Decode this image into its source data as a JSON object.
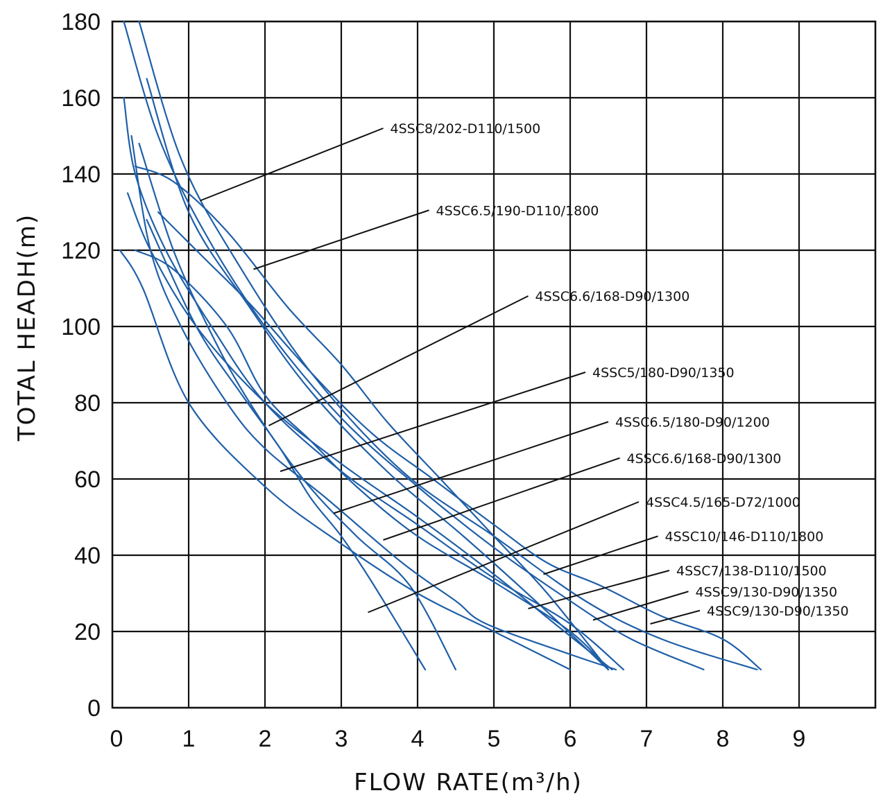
{
  "chart_data": {
    "type": "line",
    "title": "",
    "xlabel": "FLOW RATE(m³/h)",
    "ylabel": "TOTAL HEADH(m)",
    "xlim": [
      0,
      10
    ],
    "ylim": [
      0,
      180
    ],
    "x_ticks": [
      "0",
      "1",
      "2",
      "3",
      "4",
      "5",
      "6",
      "7",
      "8",
      "9"
    ],
    "y_ticks": [
      "0",
      "20",
      "40",
      "60",
      "80",
      "100",
      "120",
      "140",
      "160",
      "180"
    ],
    "grid": true,
    "curve_color": "#1f5fa8",
    "series": [
      {
        "name": "4SSC8/202-D110/1500",
        "points": [
          [
            0.35,
            180
          ],
          [
            0.9,
            144
          ],
          [
            1.6,
            118
          ],
          [
            2.6,
            88
          ],
          [
            3.8,
            62
          ],
          [
            5.0,
            45
          ],
          [
            6.2,
            28
          ],
          [
            7.2,
            18
          ],
          [
            8.45,
            10
          ]
        ]
      },
      {
        "name": "4SSC6.5/190-D110/1800",
        "points": [
          [
            0.15,
            180
          ],
          [
            0.6,
            150
          ],
          [
            1.2,
            125
          ],
          [
            2.0,
            100
          ],
          [
            3.0,
            76
          ],
          [
            4.0,
            58
          ],
          [
            5.0,
            42
          ],
          [
            6.0,
            28
          ],
          [
            6.8,
            18
          ],
          [
            7.75,
            10
          ]
        ]
      },
      {
        "name": "4SSC6.6/168-D90/1300",
        "points": [
          [
            0.15,
            160
          ],
          [
            0.3,
            140
          ],
          [
            0.7,
            120
          ],
          [
            1.3,
            100
          ],
          [
            2.0,
            80
          ],
          [
            3.0,
            62
          ],
          [
            4.0,
            48
          ],
          [
            5.0,
            34
          ],
          [
            6.0,
            22
          ],
          [
            6.7,
            10
          ]
        ]
      },
      {
        "name": "4SSC5/180-D90/1350",
        "points": [
          [
            0.45,
            165
          ],
          [
            1.0,
            130
          ],
          [
            1.8,
            105
          ],
          [
            2.6,
            83
          ],
          [
            3.6,
            62
          ],
          [
            4.6,
            45
          ],
          [
            5.6,
            27
          ],
          [
            6.5,
            10
          ]
        ]
      },
      {
        "name": "4SSC6.5/180-D90/1200",
        "points": [
          [
            0.2,
            135
          ],
          [
            0.5,
            120
          ],
          [
            1.1,
            100
          ],
          [
            2.0,
            80
          ],
          [
            3.0,
            64
          ],
          [
            4.0,
            50
          ],
          [
            5.0,
            35
          ],
          [
            5.8,
            22
          ],
          [
            6.55,
            10
          ]
        ]
      },
      {
        "name": "4SSC6.6/168-D90/1300",
        "points": [
          [
            0.3,
            142
          ],
          [
            0.8,
            138
          ],
          [
            1.5,
            125
          ],
          [
            2.3,
            105
          ],
          [
            3.0,
            90
          ],
          [
            3.6,
            75
          ],
          [
            4.3,
            60
          ],
          [
            5.0,
            45
          ],
          [
            5.7,
            30
          ],
          [
            6.5,
            10
          ]
        ]
      },
      {
        "name": "4SSC4.5/165-D72/1000",
        "points": [
          [
            0.1,
            120
          ],
          [
            0.4,
            110
          ],
          [
            1.0,
            80
          ],
          [
            2.0,
            58
          ],
          [
            3.0,
            43
          ],
          [
            4.0,
            30
          ],
          [
            5.0,
            20
          ],
          [
            6.0,
            10
          ]
        ]
      },
      {
        "name": "4SSC10/146-D110/1800",
        "points": [
          [
            0.6,
            130
          ],
          [
            1.2,
            118
          ],
          [
            1.8,
            106
          ],
          [
            2.6,
            88
          ],
          [
            3.4,
            72
          ],
          [
            4.2,
            60
          ],
          [
            5.0,
            48
          ],
          [
            5.7,
            38
          ],
          [
            6.4,
            32
          ],
          [
            7.2,
            24
          ],
          [
            8.0,
            18
          ],
          [
            8.5,
            10
          ]
        ]
      },
      {
        "name": "4SSC7/138-D110/1500",
        "points": [
          [
            0.3,
            120
          ],
          [
            0.8,
            115
          ],
          [
            1.5,
            100
          ],
          [
            2.0,
            82
          ],
          [
            2.6,
            70
          ],
          [
            3.2,
            58
          ],
          [
            4.0,
            45
          ],
          [
            5.0,
            33
          ],
          [
            6.0,
            20
          ],
          [
            6.5,
            10
          ]
        ]
      },
      {
        "name": "4SSC9/130-D90/1350",
        "points": [
          [
            0.25,
            150
          ],
          [
            0.5,
            120
          ],
          [
            0.9,
            100
          ],
          [
            1.5,
            80
          ],
          [
            2.0,
            68
          ],
          [
            2.8,
            55
          ],
          [
            3.8,
            38
          ],
          [
            4.5,
            28
          ],
          [
            4.9,
            22
          ],
          [
            6.0,
            14
          ],
          [
            6.6,
            10
          ]
        ]
      },
      {
        "name": "4SSC9/130-D90/1350",
        "points": [
          [
            0.35,
            148
          ],
          [
            0.8,
            120
          ],
          [
            1.3,
            98
          ],
          [
            1.8,
            80
          ],
          [
            2.5,
            60
          ],
          [
            3.2,
            45
          ],
          [
            3.9,
            32
          ],
          [
            4.5,
            10
          ]
        ]
      },
      {
        "name": "",
        "points": [
          [
            0.45,
            128
          ],
          [
            1.1,
            100
          ],
          [
            1.7,
            82
          ],
          [
            2.2,
            68
          ],
          [
            2.6,
            55
          ],
          [
            3.0,
            45
          ],
          [
            3.4,
            33
          ],
          [
            4.1,
            10
          ]
        ]
      }
    ],
    "labels": [
      {
        "text": "4SSC8/202-D110/1500",
        "x": 3.55,
        "y": 152,
        "target_x": 1.15,
        "target_y": 133
      },
      {
        "text": "4SSC6.5/190-D110/1800",
        "x": 4.15,
        "y": 130.5,
        "target_x": 1.85,
        "target_y": 115
      },
      {
        "text": "4SSC6.6/168-D90/1300",
        "x": 5.45,
        "y": 108,
        "target_x": 2.05,
        "target_y": 74
      },
      {
        "text": "4SSC5/180-D90/1350",
        "x": 6.2,
        "y": 88,
        "target_x": 2.2,
        "target_y": 62
      },
      {
        "text": "4SSC6.5/180-D90/1200",
        "x": 6.5,
        "y": 75,
        "target_x": 2.9,
        "target_y": 51
      },
      {
        "text": "4SSC6.6/168-D90/1300",
        "x": 6.65,
        "y": 65.5,
        "target_x": 3.55,
        "target_y": 44
      },
      {
        "text": "4SSC4.5/165-D72/1000",
        "x": 6.9,
        "y": 54,
        "target_x": 3.35,
        "target_y": 25
      },
      {
        "text": "4SSC10/146-D110/1800",
        "x": 7.15,
        "y": 45,
        "target_x": 5.65,
        "target_y": 35
      },
      {
        "text": "4SSC7/138-D110/1500",
        "x": 7.3,
        "y": 36,
        "target_x": 5.45,
        "target_y": 26
      },
      {
        "text": "4SSC9/130-D90/1350",
        "x": 7.55,
        "y": 30.5,
        "target_x": 6.3,
        "target_y": 23
      },
      {
        "text": "4SSC9/130-D90/1350",
        "x": 7.7,
        "y": 25.5,
        "target_x": 7.05,
        "target_y": 22
      }
    ]
  }
}
